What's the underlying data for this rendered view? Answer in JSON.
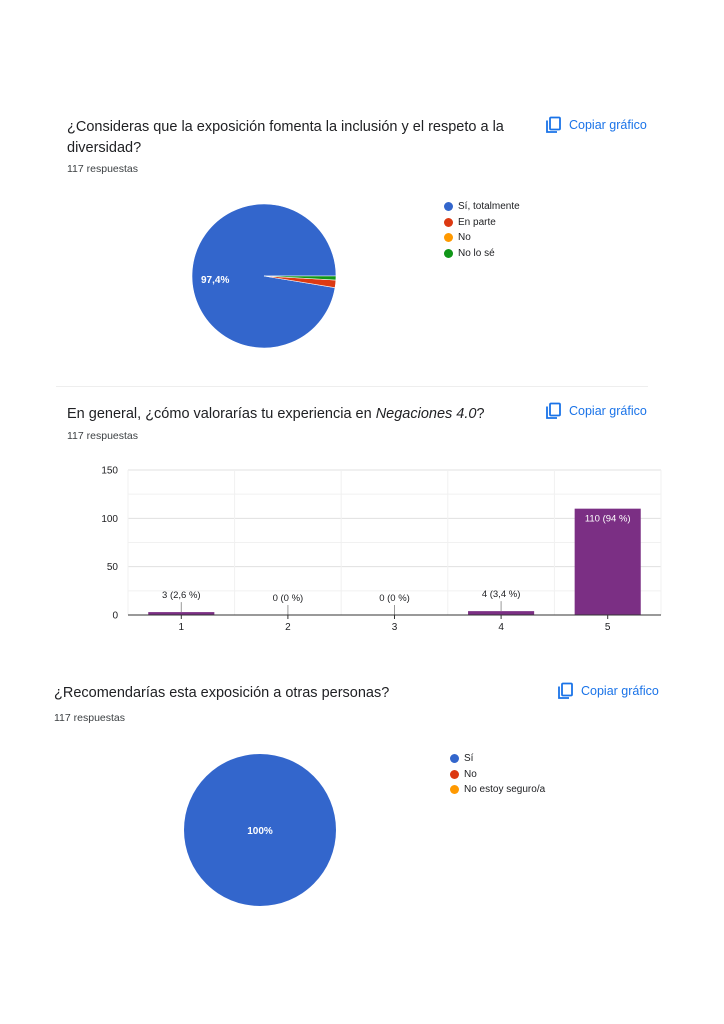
{
  "colors": {
    "blue": "#3366cc",
    "red": "#dc3912",
    "orange": "#ff9900",
    "green": "#109618",
    "purple": "#7b2f84",
    "link": "#1a73e8"
  },
  "copy_label": "Copiar gráfico",
  "q1": {
    "title": "¿Consideras que la exposición fomenta la inclusión y el respeto a la diversidad?",
    "responses": "117 respuestas",
    "slice_label": "97,4%"
  },
  "q2": {
    "title_prefix": "En general, ¿cómo valorarías tu experiencia en ",
    "title_italic": "Negaciones 4.0",
    "title_suffix": "?",
    "responses": "117 respuestas"
  },
  "q3": {
    "title": "¿Recomendarías esta exposición a otras personas?",
    "responses": "117 respuestas",
    "slice_label": "100%"
  },
  "chart_data": [
    {
      "type": "pie",
      "categories": [
        "Sí, totalmente",
        "En parte",
        "No",
        "No lo sé"
      ],
      "values": [
        97.4,
        1.7,
        0,
        0.9
      ],
      "colors": [
        "#3366cc",
        "#dc3912",
        "#ff9900",
        "#109618"
      ],
      "legend": "right"
    },
    {
      "type": "bar",
      "categories": [
        "1",
        "2",
        "3",
        "4",
        "5"
      ],
      "values": [
        3,
        0,
        0,
        4,
        110
      ],
      "data_labels": [
        "3 (2,6 %)",
        "0 (0 %)",
        "0 (0 %)",
        "4 (3,4 %)",
        "110 (94 %)"
      ],
      "ylim": [
        0,
        150
      ],
      "yticks": [
        0,
        50,
        100,
        150
      ],
      "grid": true,
      "color": "#7b2f84"
    },
    {
      "type": "pie",
      "categories": [
        "Sí",
        "No",
        "No estoy seguro/a"
      ],
      "values": [
        100,
        0,
        0
      ],
      "colors": [
        "#3366cc",
        "#dc3912",
        "#ff9900"
      ],
      "legend": "right"
    }
  ]
}
